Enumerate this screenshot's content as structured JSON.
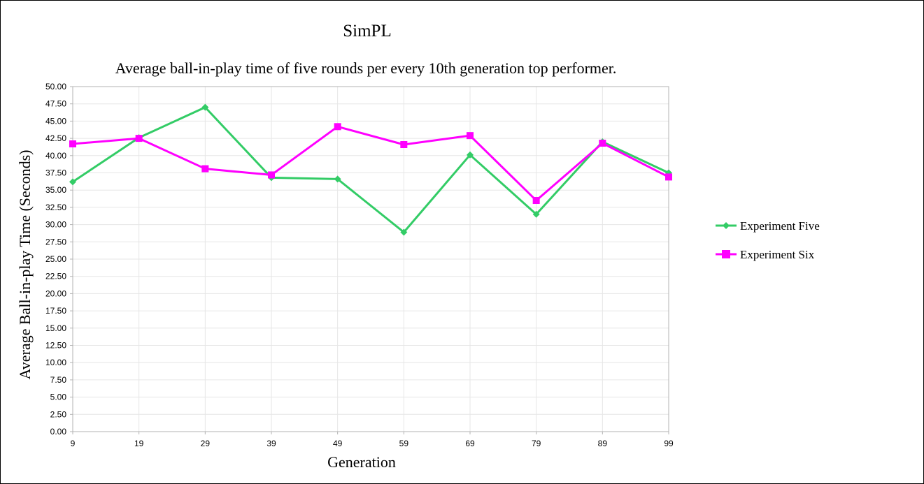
{
  "chart_data": {
    "type": "line",
    "title": "SimPL",
    "subtitle": "Average ball-in-play time of five rounds per every 10th generation top performer.",
    "xlabel": "Generation",
    "ylabel": "Average Ball-in-play Time (Seconds)",
    "categories": [
      "9",
      "19",
      "29",
      "39",
      "49",
      "59",
      "69",
      "79",
      "89",
      "99"
    ],
    "ylim": [
      0,
      50
    ],
    "ytick_step": 2.5,
    "yticks": [
      "0.00",
      "2.50",
      "5.00",
      "7.50",
      "10.00",
      "12.50",
      "15.00",
      "17.50",
      "20.00",
      "22.50",
      "25.00",
      "27.50",
      "30.00",
      "32.50",
      "35.00",
      "37.50",
      "40.00",
      "42.50",
      "45.00",
      "47.50",
      "50.00"
    ],
    "grid": true,
    "legend_position": "right",
    "series": [
      {
        "name": "Experiment Five",
        "color": "#33cc66",
        "marker": "diamond",
        "values": [
          36.2,
          42.6,
          47.0,
          36.8,
          36.6,
          28.9,
          40.1,
          31.5,
          42.0,
          37.5
        ]
      },
      {
        "name": "Experiment Six",
        "color": "#ff00ff",
        "marker": "square",
        "values": [
          41.7,
          42.5,
          38.1,
          37.2,
          44.2,
          41.6,
          42.9,
          33.5,
          41.8,
          36.9
        ]
      }
    ]
  }
}
